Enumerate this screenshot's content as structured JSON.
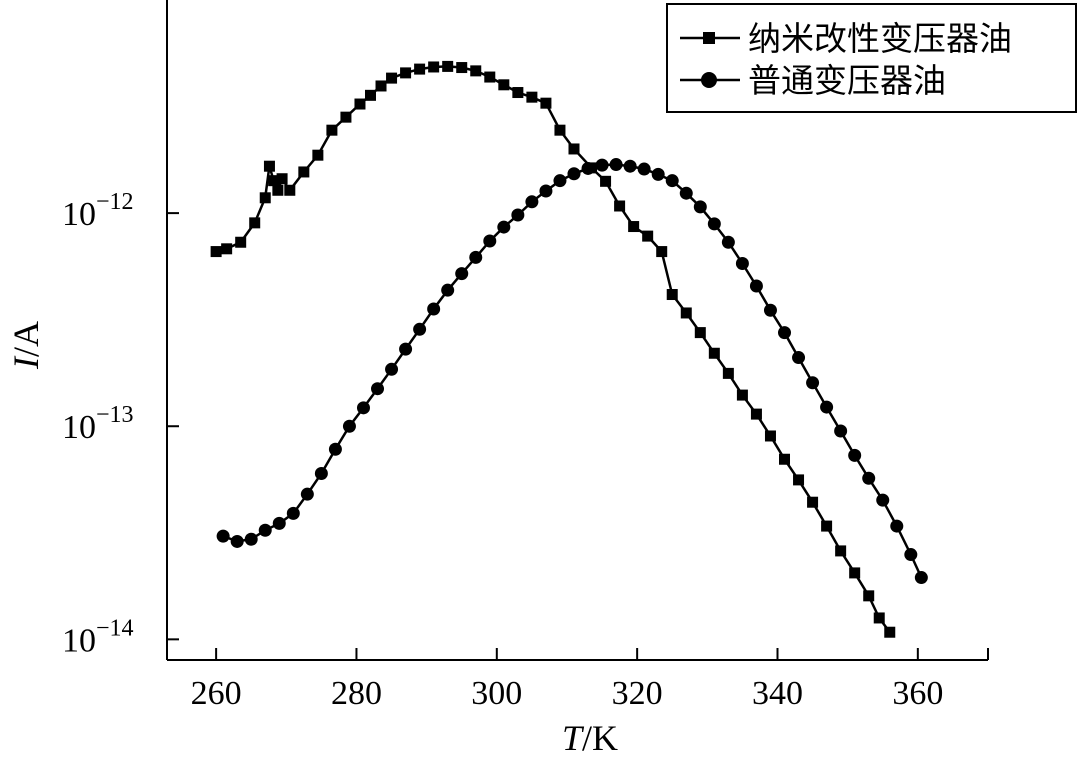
{
  "chart_data": {
    "type": "line",
    "xlabel": {
      "var": "T",
      "unit": "/K"
    },
    "ylabel": {
      "var": "I",
      "unit": "/A"
    },
    "xlim": [
      253,
      370
    ],
    "ylim": [
      8e-15,
      1e-11
    ],
    "yscale": "log",
    "grid": false,
    "legend_position": "top-right",
    "x_ticks": [
      260,
      280,
      300,
      320,
      340,
      360
    ],
    "y_ticks": [
      {
        "value": 1e-12,
        "base": "10",
        "exp": "−12"
      },
      {
        "value": 1e-13,
        "base": "10",
        "exp": "−13"
      },
      {
        "value": 1e-14,
        "base": "10",
        "exp": "−14"
      }
    ],
    "series": [
      {
        "name": "纳米改性变压器油",
        "marker": "square",
        "color": "#000000",
        "points": [
          [
            260,
            6.6e-13
          ],
          [
            261.5,
            6.8e-13
          ],
          [
            263.5,
            7.3e-13
          ],
          [
            265.5,
            9e-13
          ],
          [
            267,
            1.18e-12
          ],
          [
            267.6,
            1.66e-12
          ],
          [
            268.2,
            1.42e-12
          ],
          [
            268.8,
            1.28e-12
          ],
          [
            269.4,
            1.45e-12
          ],
          [
            270.5,
            1.28e-12
          ],
          [
            272.5,
            1.56e-12
          ],
          [
            274.5,
            1.87e-12
          ],
          [
            276.5,
            2.45e-12
          ],
          [
            278.5,
            2.82e-12
          ],
          [
            280.5,
            3.25e-12
          ],
          [
            282,
            3.57e-12
          ],
          [
            283.5,
            3.95e-12
          ],
          [
            285,
            4.3e-12
          ],
          [
            287,
            4.55e-12
          ],
          [
            289,
            4.74e-12
          ],
          [
            291,
            4.85e-12
          ],
          [
            293,
            4.88e-12
          ],
          [
            295,
            4.82e-12
          ],
          [
            297,
            4.65e-12
          ],
          [
            299,
            4.35e-12
          ],
          [
            301,
            4e-12
          ],
          [
            303,
            3.68e-12
          ],
          [
            305,
            3.5e-12
          ],
          [
            307,
            3.28e-12
          ],
          [
            309,
            2.45e-12
          ],
          [
            311,
            2e-12
          ],
          [
            313.5,
            1.63e-12
          ],
          [
            315.5,
            1.41e-12
          ],
          [
            317.5,
            1.08e-12
          ],
          [
            319.5,
            8.65e-13
          ],
          [
            321.5,
            7.8e-13
          ],
          [
            323.5,
            6.6e-13
          ],
          [
            325,
            4.15e-13
          ],
          [
            327,
            3.4e-13
          ],
          [
            329,
            2.75e-13
          ],
          [
            331,
            2.2e-13
          ],
          [
            333,
            1.77e-13
          ],
          [
            335,
            1.4e-13
          ],
          [
            337,
            1.14e-13
          ],
          [
            339,
            9e-14
          ],
          [
            341,
            7e-14
          ],
          [
            343,
            5.6e-14
          ],
          [
            345,
            4.4e-14
          ],
          [
            347,
            3.4e-14
          ],
          [
            349,
            2.6e-14
          ],
          [
            351,
            2.05e-14
          ],
          [
            353,
            1.6e-14
          ],
          [
            354.5,
            1.26e-14
          ],
          [
            356,
            1.08e-14
          ]
        ]
      },
      {
        "name": "普通变压器油",
        "marker": "circle",
        "color": "#000000",
        "points": [
          [
            261,
            3.05e-14
          ],
          [
            263,
            2.88e-14
          ],
          [
            265,
            2.95e-14
          ],
          [
            267,
            3.25e-14
          ],
          [
            269,
            3.5e-14
          ],
          [
            271,
            3.9e-14
          ],
          [
            273,
            4.8e-14
          ],
          [
            275,
            6e-14
          ],
          [
            277,
            7.8e-14
          ],
          [
            279,
            1e-13
          ],
          [
            281,
            1.22e-13
          ],
          [
            283,
            1.5e-13
          ],
          [
            285,
            1.85e-13
          ],
          [
            287,
            2.3e-13
          ],
          [
            289,
            2.85e-13
          ],
          [
            291,
            3.55e-13
          ],
          [
            293,
            4.35e-13
          ],
          [
            295,
            5.2e-13
          ],
          [
            297,
            6.2e-13
          ],
          [
            299,
            7.4e-13
          ],
          [
            301,
            8.6e-13
          ],
          [
            303,
            9.8e-13
          ],
          [
            305,
            1.13e-12
          ],
          [
            307,
            1.27e-12
          ],
          [
            309,
            1.42e-12
          ],
          [
            311,
            1.53e-12
          ],
          [
            313,
            1.62e-12
          ],
          [
            315,
            1.68e-12
          ],
          [
            317,
            1.69e-12
          ],
          [
            319,
            1.66e-12
          ],
          [
            321,
            1.61e-12
          ],
          [
            323,
            1.52e-12
          ],
          [
            325,
            1.42e-12
          ],
          [
            327,
            1.24e-12
          ],
          [
            329,
            1.07e-12
          ],
          [
            331,
            8.9e-13
          ],
          [
            333,
            7.3e-13
          ],
          [
            335,
            5.8e-13
          ],
          [
            337,
            4.55e-13
          ],
          [
            339,
            3.5e-13
          ],
          [
            341,
            2.75e-13
          ],
          [
            343,
            2.1e-13
          ],
          [
            345,
            1.6e-13
          ],
          [
            347,
            1.23e-13
          ],
          [
            349,
            9.5e-14
          ],
          [
            351,
            7.3e-14
          ],
          [
            353,
            5.7e-14
          ],
          [
            355,
            4.5e-14
          ],
          [
            357,
            3.4e-14
          ],
          [
            359,
            2.5e-14
          ],
          [
            360.5,
            1.95e-14
          ]
        ]
      }
    ]
  }
}
